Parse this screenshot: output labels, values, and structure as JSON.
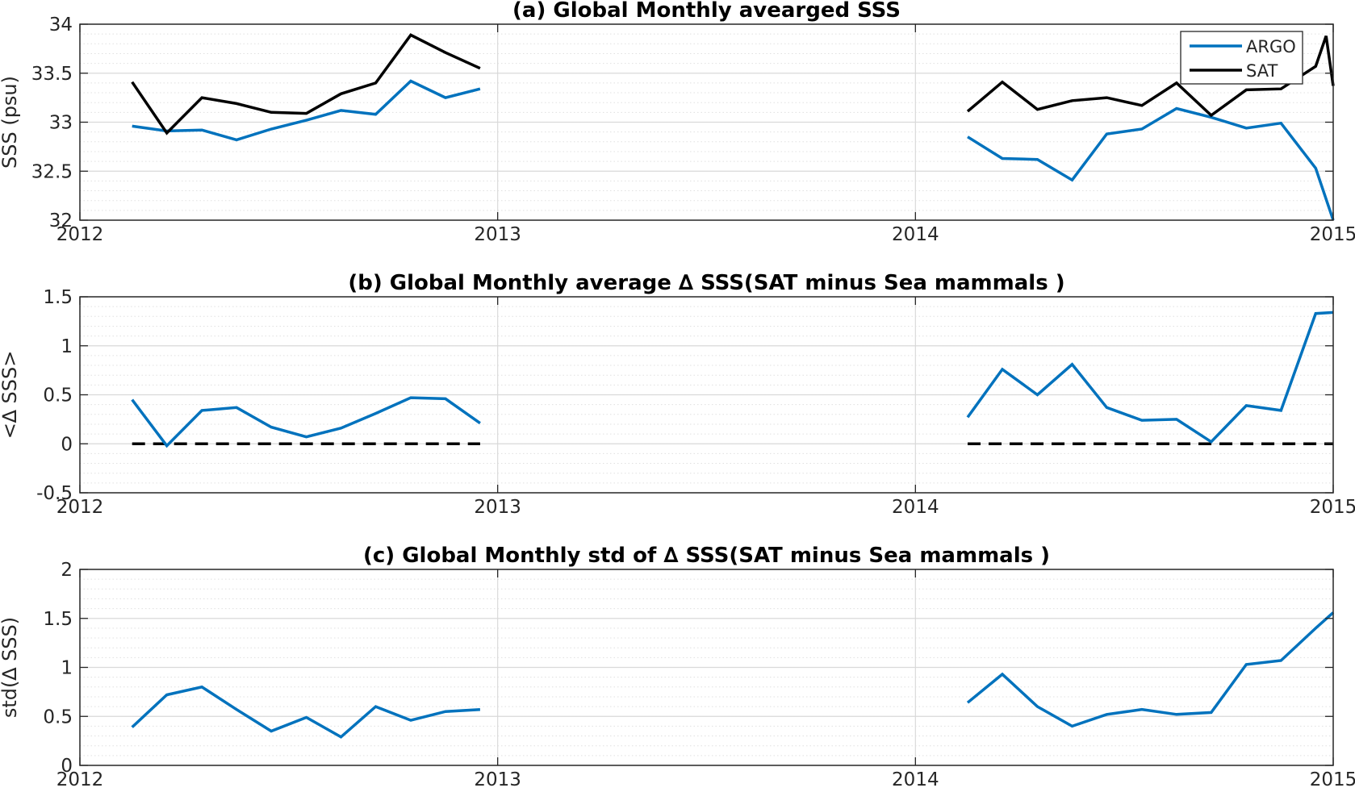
{
  "colors": {
    "argo": "#0072BD",
    "sat": "#000000",
    "zero_line": "#000000",
    "major_grid": "#d9d9d9",
    "minor_grid": "#e0e0e0"
  },
  "chart_data": [
    {
      "type": "line",
      "title": "(a) Global Monthly avearged SSS",
      "xlabel": "",
      "ylabel": "SSS (psu)",
      "xlim": [
        2012,
        2015
      ],
      "ylim": [
        32,
        34
      ],
      "xticks": [
        2012,
        2013,
        2014,
        2015
      ],
      "xtick_labels": [
        "2012",
        "2013",
        "2014",
        "2015"
      ],
      "yticks": [
        32,
        32.5,
        33,
        33.5,
        34
      ],
      "ytick_labels": [
        "32",
        "32.5",
        "33",
        "33.5",
        "34"
      ],
      "minor_ystep": 0.1,
      "grid": true,
      "legend": {
        "placement": "top-right",
        "entries": [
          "ARGO",
          "SAT"
        ]
      },
      "series": [
        {
          "name": "ARGO",
          "color_key": "argo",
          "segments": [
            {
              "x": [
                2012.125,
                2012.208,
                2012.292,
                2012.375,
                2012.458,
                2012.542,
                2012.625,
                2012.708,
                2012.792,
                2012.875,
                2012.958
              ],
              "y": [
                32.96,
                32.91,
                32.92,
                32.82,
                32.93,
                33.02,
                33.12,
                33.08,
                33.42,
                33.25,
                33.34
              ]
            },
            {
              "x": [
                2014.125,
                2014.208,
                2014.292,
                2014.375,
                2014.458,
                2014.542,
                2014.625,
                2014.708,
                2014.792,
                2014.875,
                2014.958,
                2015.0
              ],
              "y": [
                32.85,
                32.63,
                32.62,
                32.41,
                32.88,
                32.93,
                33.14,
                33.05,
                32.94,
                32.99,
                32.53,
                32.0
              ]
            }
          ]
        },
        {
          "name": "SAT",
          "color_key": "sat",
          "segments": [
            {
              "x": [
                2012.125,
                2012.208,
                2012.292,
                2012.375,
                2012.458,
                2012.542,
                2012.625,
                2012.708,
                2012.792,
                2012.875,
                2012.958
              ],
              "y": [
                33.41,
                32.89,
                33.25,
                33.19,
                33.1,
                33.09,
                33.29,
                33.4,
                33.89,
                33.71,
                33.55
              ]
            },
            {
              "x": [
                2014.125,
                2014.208,
                2014.292,
                2014.375,
                2014.458,
                2014.542,
                2014.625,
                2014.708,
                2014.792,
                2014.875,
                2014.958,
                2014.983,
                2015.0
              ],
              "y": [
                33.11,
                33.41,
                33.13,
                33.22,
                33.25,
                33.17,
                33.4,
                33.07,
                33.33,
                33.34,
                33.57,
                33.88,
                33.37
              ]
            }
          ]
        }
      ]
    },
    {
      "type": "line",
      "title": "(b) Global Monthly average ∆ SSS(SAT minus Sea mammals )",
      "xlabel": "",
      "ylabel": "<∆ SSS>",
      "xlim": [
        2012,
        2015
      ],
      "ylim": [
        -0.5,
        1.5
      ],
      "xticks": [
        2012,
        2013,
        2014,
        2015
      ],
      "xtick_labels": [
        "2012",
        "2013",
        "2014",
        "2015"
      ],
      "yticks": [
        -0.5,
        0,
        0.5,
        1,
        1.5
      ],
      "ytick_labels": [
        "-0.5",
        "0",
        "0.5",
        "1",
        "1.5"
      ],
      "minor_ystep": 0.1,
      "grid": true,
      "zero_line": [
        {
          "x": [
            2012.125,
            2012.958
          ],
          "y": 0
        },
        {
          "x": [
            2014.125,
            2015.0
          ],
          "y": 0
        }
      ],
      "series": [
        {
          "color_key": "argo",
          "segments": [
            {
              "x": [
                2012.125,
                2012.208,
                2012.292,
                2012.375,
                2012.458,
                2012.542,
                2012.625,
                2012.708,
                2012.792,
                2012.875,
                2012.958
              ],
              "y": [
                0.45,
                -0.02,
                0.34,
                0.37,
                0.17,
                0.07,
                0.16,
                0.31,
                0.47,
                0.46,
                0.21
              ]
            },
            {
              "x": [
                2014.125,
                2014.208,
                2014.292,
                2014.375,
                2014.458,
                2014.542,
                2014.625,
                2014.708,
                2014.792,
                2014.875,
                2014.958,
                2015.0
              ],
              "y": [
                0.27,
                0.76,
                0.5,
                0.81,
                0.37,
                0.24,
                0.25,
                0.02,
                0.39,
                0.34,
                1.33,
                1.34
              ]
            }
          ]
        }
      ]
    },
    {
      "type": "line",
      "title": "(c) Global Monthly std of ∆ SSS(SAT minus Sea mammals )",
      "xlabel": "",
      "ylabel": "std(∆ SSS)",
      "xlim": [
        2012,
        2015
      ],
      "ylim": [
        0,
        2
      ],
      "xticks": [
        2012,
        2013,
        2014,
        2015
      ],
      "xtick_labels": [
        "2012",
        "2013",
        "2014",
        "2015"
      ],
      "yticks": [
        0,
        0.5,
        1,
        1.5,
        2
      ],
      "ytick_labels": [
        "0",
        "0.5",
        "1",
        "1.5",
        "2"
      ],
      "minor_ystep": 0.1,
      "grid": true,
      "series": [
        {
          "color_key": "argo",
          "segments": [
            {
              "x": [
                2012.125,
                2012.208,
                2012.292,
                2012.375,
                2012.458,
                2012.542,
                2012.625,
                2012.708,
                2012.792,
                2012.875,
                2012.958
              ],
              "y": [
                0.39,
                0.72,
                0.8,
                0.57,
                0.35,
                0.49,
                0.29,
                0.6,
                0.46,
                0.55,
                0.57
              ]
            },
            {
              "x": [
                2014.125,
                2014.208,
                2014.292,
                2014.375,
                2014.458,
                2014.542,
                2014.625,
                2014.708,
                2014.792,
                2014.875,
                2014.958,
                2015.0
              ],
              "y": [
                0.64,
                0.93,
                0.6,
                0.4,
                0.52,
                0.57,
                0.52,
                0.54,
                1.03,
                1.07,
                1.4,
                1.56
              ]
            }
          ]
        }
      ]
    }
  ]
}
